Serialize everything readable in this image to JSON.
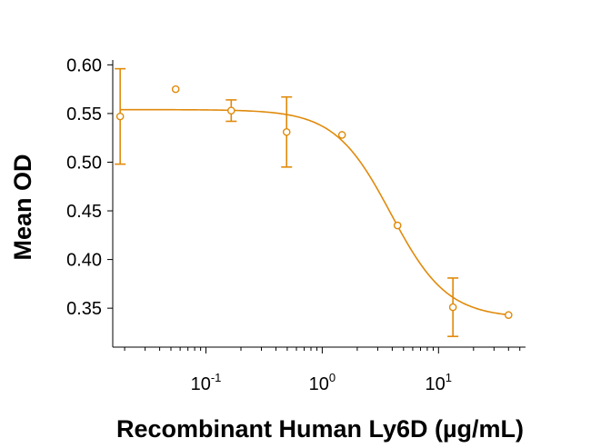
{
  "chart_data": {
    "type": "scatter",
    "title": "",
    "xlabel": "Recombinant Human Ly6D (µg/mL)",
    "ylabel": "Mean OD",
    "x_scale": "log",
    "xlim": [
      0.0158,
      56
    ],
    "ylim": [
      0.31,
      0.605
    ],
    "grid": false,
    "legend": "none",
    "color": "#E08A0B",
    "x_ticks": [
      {
        "value": 0.1,
        "base": "10",
        "exp": "-1"
      },
      {
        "value": 1,
        "base": "10",
        "exp": "0"
      },
      {
        "value": 10,
        "base": "10",
        "exp": "1"
      }
    ],
    "y_ticks": [
      "0.35",
      "0.40",
      "0.45",
      "0.50",
      "0.55",
      "0.60"
    ],
    "points": [
      {
        "x": 0.0183,
        "y": 0.547,
        "err": 0.049
      },
      {
        "x": 0.0549,
        "y": 0.575,
        "err": 0
      },
      {
        "x": 0.165,
        "y": 0.553,
        "err": 0.011
      },
      {
        "x": 0.494,
        "y": 0.531,
        "err": 0.036
      },
      {
        "x": 1.48,
        "y": 0.528,
        "err": 0
      },
      {
        "x": 4.44,
        "y": 0.435,
        "err": 0
      },
      {
        "x": 13.3,
        "y": 0.351,
        "err": 0.03
      },
      {
        "x": 40,
        "y": 0.343,
        "err": 0
      }
    ],
    "fit": {
      "type": "4PL",
      "top": 0.554,
      "bottom": 0.34,
      "ec50": 3.9,
      "hill": 1.8
    }
  }
}
